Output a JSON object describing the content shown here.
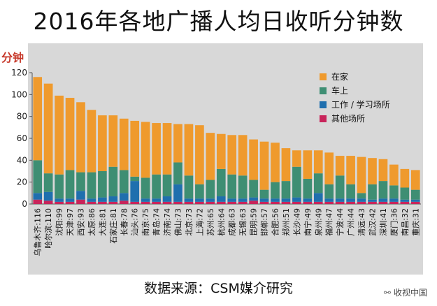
{
  "chart_data": {
    "type": "bar",
    "stacked": true,
    "title": "2016年各地广播人均日收听分钟数",
    "ylabel": "分钟",
    "xlabel": "",
    "ylim": [
      0,
      120
    ],
    "yticks": [
      0,
      20,
      40,
      60,
      80,
      100,
      120
    ],
    "grid": false,
    "legend_position": "top-right",
    "categories": [
      {
        "city": "乌鲁木齐",
        "total": "116"
      },
      {
        "city": "哈尔滨",
        "total": "110"
      },
      {
        "city": "沈阳",
        "total": "99"
      },
      {
        "city": "天津",
        "total": "97"
      },
      {
        "city": "西安",
        "total": "93"
      },
      {
        "city": "太原",
        "total": "86"
      },
      {
        "city": "大连",
        "total": "81"
      },
      {
        "city": "石家庄",
        "total": "81"
      },
      {
        "city": "长春",
        "total": "78"
      },
      {
        "city": "汕头",
        "total": "76"
      },
      {
        "city": "南京",
        "total": "75"
      },
      {
        "city": "青岛",
        "total": "74"
      },
      {
        "city": "济南",
        "total": "74"
      },
      {
        "city": "佛山",
        "total": "73"
      },
      {
        "city": "北京",
        "total": "73"
      },
      {
        "city": "上海",
        "total": "72"
      },
      {
        "city": "苏州",
        "total": "65"
      },
      {
        "city": "杭州",
        "total": "64"
      },
      {
        "city": "成都",
        "total": "63"
      },
      {
        "city": "无锡",
        "total": "63"
      },
      {
        "city": "昆明",
        "total": "59"
      },
      {
        "city": "邯郸",
        "total": "57"
      },
      {
        "city": "合肥",
        "total": "56"
      },
      {
        "city": "郑州",
        "total": "51"
      },
      {
        "city": "长沙",
        "total": "49"
      },
      {
        "city": "南宁",
        "total": "49"
      },
      {
        "city": "泉州",
        "total": "49"
      },
      {
        "city": "福州",
        "total": "47"
      },
      {
        "city": "宁波",
        "total": "44"
      },
      {
        "city": "广州",
        "total": "44"
      },
      {
        "city": "清远",
        "total": "43"
      },
      {
        "city": "武汉",
        "total": "42"
      },
      {
        "city": "深圳",
        "total": "41"
      },
      {
        "city": "厦门",
        "total": "36"
      },
      {
        "city": "南昌",
        "total": "32"
      },
      {
        "city": "重庆",
        "total": "31"
      }
    ],
    "series": [
      {
        "name": "其他场所",
        "color": "#c8245a",
        "values": [
          4,
          3,
          2,
          2,
          4,
          2,
          2,
          2,
          3,
          2,
          2,
          2,
          2,
          2,
          2,
          2,
          2,
          2,
          2,
          2,
          3,
          2,
          2,
          2,
          2,
          2,
          2,
          2,
          2,
          2,
          2,
          2,
          2,
          2,
          2,
          2
        ]
      },
      {
        "name": "工作 / 学习场所",
        "color": "#1f6fae",
        "values": [
          6,
          8,
          3,
          3,
          8,
          3,
          4,
          5,
          7,
          19,
          3,
          3,
          5,
          16,
          3,
          3,
          3,
          5,
          3,
          3,
          3,
          3,
          3,
          3,
          4,
          3,
          8,
          3,
          3,
          3,
          3,
          2,
          3,
          3,
          2,
          2
        ]
      },
      {
        "name": "车上",
        "color": "#3e8e73",
        "values": [
          30,
          17,
          22,
          26,
          17,
          24,
          24,
          27,
          21,
          4,
          19,
          22,
          20,
          20,
          21,
          13,
          17,
          25,
          22,
          21,
          16,
          8,
          15,
          16,
          28,
          18,
          18,
          13,
          21,
          13,
          5,
          14,
          16,
          12,
          11,
          9
        ]
      },
      {
        "name": "在家",
        "color": "#ef9a2d",
        "values": [
          76,
          82,
          72,
          66,
          64,
          57,
          51,
          47,
          47,
          51,
          51,
          47,
          47,
          35,
          47,
          54,
          43,
          32,
          36,
          37,
          37,
          44,
          36,
          30,
          15,
          26,
          21,
          29,
          18,
          26,
          33,
          24,
          20,
          19,
          17,
          18
        ]
      }
    ]
  },
  "source_text": "数据来源：CSM媒介研究",
  "watermark_text": "收视中国"
}
